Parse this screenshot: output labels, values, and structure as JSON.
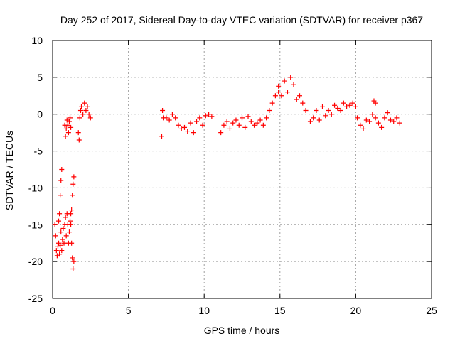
{
  "chart_data": {
    "type": "scatter",
    "title": "Day 252 of 2017, Sidereal Day-to-day VTEC variation (SDTVAR) for receiver p367",
    "xlabel": "GPS time / hours",
    "ylabel": "SDTVAR / TECUs",
    "xlim": [
      0,
      25
    ],
    "ylim": [
      -25,
      10
    ],
    "x_ticks": [
      0,
      5,
      10,
      15,
      20,
      25
    ],
    "y_ticks": [
      -25,
      -20,
      -15,
      -10,
      -5,
      0,
      5,
      10
    ],
    "grid": true,
    "marker": "+",
    "marker_color": "#ff0000",
    "series": [
      {
        "name": "SDTVAR",
        "segments": [
          {
            "x": [
              0.15,
              0.2,
              0.25,
              0.3,
              0.35,
              0.4,
              0.45,
              0.5,
              0.55,
              0.6,
              0.65,
              0.7,
              0.75,
              0.8,
              0.85,
              0.9,
              0.95,
              1.0,
              1.05,
              1.1,
              1.15,
              1.2
            ],
            "y": [
              -15.0,
              -16.5,
              -18.5,
              -19.2,
              -18.0,
              -17.5,
              -19.0,
              -17.8,
              -16.0,
              -18.5,
              -17.0,
              -15.5,
              -17.5,
              -15.0,
              -14.0,
              -16.5,
              -13.5,
              -15.0,
              -17.5,
              -16.0,
              -14.5,
              -13.5
            ]
          },
          {
            "x": [
              0.4,
              0.45,
              0.5,
              0.55,
              0.6
            ],
            "y": [
              -14.5,
              -13.5,
              -11.0,
              -9.0,
              -7.5
            ]
          },
          {
            "x": [
              1.2,
              1.25,
              1.3,
              1.35,
              1.4
            ],
            "y": [
              -15.0,
              -17.5,
              -19.5,
              -21.0,
              -20.0
            ]
          },
          {
            "x": [
              1.25,
              1.3,
              1.35,
              1.4
            ],
            "y": [
              -13.0,
              -11.0,
              -9.5,
              -8.5
            ]
          },
          {
            "x": [
              0.8,
              0.85,
              0.9,
              0.95,
              1.0,
              1.05,
              1.1,
              1.15,
              1.2
            ],
            "y": [
              -1.5,
              -3.0,
              -2.0,
              -0.8,
              -1.5,
              -2.5,
              -1.0,
              -0.5,
              -1.8
            ]
          },
          {
            "x": [
              1.7,
              1.75,
              1.8,
              1.85,
              1.9,
              2.0,
              2.1,
              2.2,
              2.3,
              2.4,
              2.5
            ],
            "y": [
              -2.5,
              -3.5,
              -0.5,
              0.5,
              1.0,
              0.0,
              1.5,
              0.5,
              1.0,
              0.0,
              -0.5
            ]
          },
          {
            "x": [
              7.2,
              7.25,
              7.3,
              7.5,
              7.7,
              7.9,
              8.1,
              8.3,
              8.5,
              8.7,
              8.9,
              9.1,
              9.3,
              9.5,
              9.7,
              9.9,
              10.1,
              10.3,
              10.5
            ],
            "y": [
              -3.0,
              0.5,
              -0.5,
              -0.5,
              -0.8,
              0.0,
              -0.5,
              -1.5,
              -2.0,
              -1.8,
              -2.3,
              -1.2,
              -2.5,
              -1.0,
              -0.5,
              -1.5,
              -0.2,
              0.0,
              -0.3
            ]
          },
          {
            "x": [
              11.1,
              11.3,
              11.5,
              11.7,
              11.9,
              12.1,
              12.3,
              12.5,
              12.7,
              12.9,
              13.1,
              13.3,
              13.5,
              13.7,
              13.9,
              14.1,
              14.3,
              14.5,
              14.7,
              14.9
            ],
            "y": [
              -2.5,
              -1.5,
              -1.0,
              -2.0,
              -1.2,
              -0.8,
              -1.5,
              -0.5,
              -1.8,
              -0.3,
              -1.0,
              -1.5,
              -1.2,
              -0.8,
              -1.5,
              -0.5,
              0.5,
              1.5,
              2.5,
              3.0
            ]
          },
          {
            "x": [
              14.9,
              15.1,
              15.3,
              15.5,
              15.7,
              15.9,
              16.1,
              16.3,
              16.5,
              16.7
            ],
            "y": [
              3.8,
              2.5,
              4.5,
              3.0,
              5.0,
              4.0,
              2.0,
              2.5,
              1.5,
              0.5
            ]
          },
          {
            "x": [
              17.0,
              17.2,
              17.4,
              17.6,
              17.8,
              18.0,
              18.2,
              18.4,
              18.6,
              18.8,
              19.0,
              19.2,
              19.4,
              19.6,
              19.8,
              20.0
            ],
            "y": [
              -1.0,
              -0.5,
              0.5,
              -0.8,
              1.0,
              -0.2,
              0.5,
              0.0,
              1.2,
              0.8,
              0.5,
              1.5,
              1.0,
              1.2,
              1.5,
              1.0
            ]
          },
          {
            "x": [
              20.1,
              20.3,
              20.5,
              20.7,
              20.9,
              21.1,
              21.3,
              21.5,
              21.7,
              21.9,
              22.1,
              22.3,
              22.5,
              22.7,
              22.9
            ],
            "y": [
              -0.5,
              -1.5,
              -2.0,
              -0.8,
              -1.0,
              0.0,
              -0.5,
              -1.2,
              -1.8,
              -0.5,
              0.2,
              -0.8,
              -1.0,
              -0.5,
              -1.2
            ]
          },
          {
            "x": [
              21.2,
              21.3
            ],
            "y": [
              1.8,
              1.5
            ]
          }
        ]
      }
    ]
  }
}
